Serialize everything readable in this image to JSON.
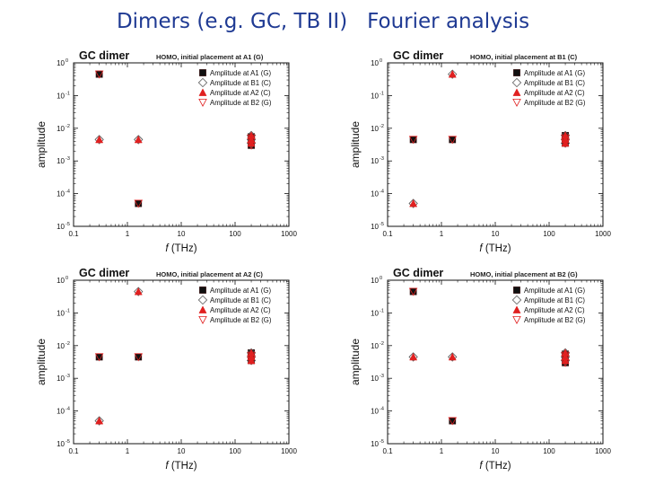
{
  "slide": {
    "title": "Dimers (e.g. GC, TB II)   Fourier analysis"
  },
  "chart_data": [
    {
      "type": "scatter",
      "title": "GC dimer",
      "subtitle": "HOMO, initial placement at A1 (G)",
      "xlabel": "f (THz)",
      "xlabel_italic": "f",
      "xlabel_rest": " (THz)",
      "ylabel": "amplitude",
      "x_scale": "log",
      "y_scale": "log",
      "xlim": [
        0.1,
        1000
      ],
      "ylim": [
        1e-05,
        1
      ],
      "x_ticks": [
        "0.1",
        "1",
        "10",
        "100",
        "1000"
      ],
      "y_ticks": [
        {
          "base": "10",
          "exp": "0",
          "value": 1
        },
        {
          "base": "10",
          "exp": "-1",
          "value": 0.1
        },
        {
          "base": "10",
          "exp": "-2",
          "value": 0.01
        },
        {
          "base": "10",
          "exp": "-3",
          "value": 0.001
        },
        {
          "base": "10",
          "exp": "-4",
          "value": 0.0001
        },
        {
          "base": "10",
          "exp": "-5",
          "value": 1e-05
        }
      ],
      "grid": false,
      "legend_position": "top-right",
      "series": [
        {
          "name": "Amplitude at A1 (G)",
          "marker": "filled-square",
          "color": "#111111",
          "x": [
            0.3,
            1.6,
            200,
            200,
            200
          ],
          "y": [
            0.45,
            5e-05,
            0.0055,
            0.004,
            0.003
          ]
        },
        {
          "name": "Amplitude at B1 (C)",
          "marker": "open-diamond",
          "color": "#555555",
          "x": [
            0.3,
            1.6,
            200,
            200,
            200
          ],
          "y": [
            0.0045,
            0.0045,
            0.006,
            0.0045,
            0.0035
          ]
        },
        {
          "name": "Amplitude at A2 (C)",
          "marker": "filled-triangle",
          "color": "#e02020",
          "x": [
            0.3,
            1.6,
            200,
            200,
            200
          ],
          "y": [
            0.0045,
            0.0045,
            0.006,
            0.0045,
            0.0035
          ]
        },
        {
          "name": "Amplitude at B2 (G)",
          "marker": "open-triangle-down",
          "color": "#e02020",
          "x": [
            0.3,
            1.6,
            200,
            200,
            200
          ],
          "y": [
            0.45,
            5e-05,
            0.005,
            0.004,
            0.003
          ]
        }
      ]
    },
    {
      "type": "scatter",
      "title": "GC dimer",
      "subtitle": "HOMO, initial placement at B1 (C)",
      "xlabel": "f (THz)",
      "xlabel_italic": "f",
      "xlabel_rest": " (THz)",
      "ylabel": "amplitude",
      "x_scale": "log",
      "y_scale": "log",
      "xlim": [
        0.1,
        1000
      ],
      "ylim": [
        1e-05,
        1
      ],
      "x_ticks": [
        "0.1",
        "1",
        "10",
        "100",
        "1000"
      ],
      "y_ticks": [
        {
          "base": "10",
          "exp": "0",
          "value": 1
        },
        {
          "base": "10",
          "exp": "-1",
          "value": 0.1
        },
        {
          "base": "10",
          "exp": "-2",
          "value": 0.01
        },
        {
          "base": "10",
          "exp": "-3",
          "value": 0.001
        },
        {
          "base": "10",
          "exp": "-4",
          "value": 0.0001
        },
        {
          "base": "10",
          "exp": "-5",
          "value": 1e-05
        }
      ],
      "grid": false,
      "legend_position": "top-right",
      "series": [
        {
          "name": "Amplitude at A1 (G)",
          "marker": "filled-square",
          "color": "#111111",
          "x": [
            0.3,
            1.6,
            200,
            200,
            200
          ],
          "y": [
            0.0045,
            0.0045,
            0.006,
            0.0045,
            0.0035
          ]
        },
        {
          "name": "Amplitude at B1 (C)",
          "marker": "open-diamond",
          "color": "#555555",
          "x": [
            0.3,
            1.6,
            200,
            200,
            200
          ],
          "y": [
            5e-05,
            0.45,
            0.006,
            0.0045,
            0.0035
          ]
        },
        {
          "name": "Amplitude at A2 (C)",
          "marker": "filled-triangle",
          "color": "#e02020",
          "x": [
            0.3,
            1.6,
            200,
            200,
            200
          ],
          "y": [
            5e-05,
            0.45,
            0.006,
            0.0045,
            0.0035
          ]
        },
        {
          "name": "Amplitude at B2 (G)",
          "marker": "open-triangle-down",
          "color": "#e02020",
          "x": [
            0.3,
            1.6,
            200,
            200,
            200
          ],
          "y": [
            0.0045,
            0.0045,
            0.005,
            0.004,
            0.0035
          ]
        }
      ]
    },
    {
      "type": "scatter",
      "title": "GC dimer",
      "subtitle": "HOMO, initial placement at A2 (C)",
      "xlabel": "f (THz)",
      "xlabel_italic": "f",
      "xlabel_rest": " (THz)",
      "ylabel": "amplitude",
      "x_scale": "log",
      "y_scale": "log",
      "xlim": [
        0.1,
        1000
      ],
      "ylim": [
        1e-05,
        1
      ],
      "x_ticks": [
        "0.1",
        "1",
        "10",
        "100",
        "1000"
      ],
      "y_ticks": [
        {
          "base": "10",
          "exp": "0",
          "value": 1
        },
        {
          "base": "10",
          "exp": "-1",
          "value": 0.1
        },
        {
          "base": "10",
          "exp": "-2",
          "value": 0.01
        },
        {
          "base": "10",
          "exp": "-3",
          "value": 0.001
        },
        {
          "base": "10",
          "exp": "-4",
          "value": 0.0001
        },
        {
          "base": "10",
          "exp": "-5",
          "value": 1e-05
        }
      ],
      "grid": false,
      "legend_position": "top-right",
      "series": [
        {
          "name": "Amplitude at A1 (G)",
          "marker": "filled-square",
          "color": "#111111",
          "x": [
            0.3,
            1.6,
            200,
            200,
            200
          ],
          "y": [
            0.0045,
            0.0045,
            0.006,
            0.0045,
            0.0035
          ]
        },
        {
          "name": "Amplitude at B1 (C)",
          "marker": "open-diamond",
          "color": "#555555",
          "x": [
            0.3,
            1.6,
            200,
            200,
            200
          ],
          "y": [
            5e-05,
            0.45,
            0.006,
            0.0045,
            0.0035
          ]
        },
        {
          "name": "Amplitude at A2 (C)",
          "marker": "filled-triangle",
          "color": "#e02020",
          "x": [
            0.3,
            1.6,
            200,
            200,
            200
          ],
          "y": [
            5e-05,
            0.45,
            0.006,
            0.0045,
            0.0035
          ]
        },
        {
          "name": "Amplitude at B2 (G)",
          "marker": "open-triangle-down",
          "color": "#e02020",
          "x": [
            0.3,
            1.6,
            200,
            200,
            200
          ],
          "y": [
            0.0045,
            0.0045,
            0.005,
            0.004,
            0.0035
          ]
        }
      ]
    },
    {
      "type": "scatter",
      "title": "GC dimer",
      "subtitle": "HOMO, initial placement at B2 (G)",
      "xlabel": "f (THz)",
      "xlabel_italic": "f",
      "xlabel_rest": " (THz)",
      "ylabel": "amplitude",
      "x_scale": "log",
      "y_scale": "log",
      "xlim": [
        0.1,
        1000
      ],
      "ylim": [
        1e-05,
        1
      ],
      "x_ticks": [
        "0.1",
        "1",
        "10",
        "100",
        "1000"
      ],
      "y_ticks": [
        {
          "base": "10",
          "exp": "0",
          "value": 1
        },
        {
          "base": "10",
          "exp": "-1",
          "value": 0.1
        },
        {
          "base": "10",
          "exp": "-2",
          "value": 0.01
        },
        {
          "base": "10",
          "exp": "-3",
          "value": 0.001
        },
        {
          "base": "10",
          "exp": "-4",
          "value": 0.0001
        },
        {
          "base": "10",
          "exp": "-5",
          "value": 1e-05
        }
      ],
      "grid": false,
      "legend_position": "top-right",
      "series": [
        {
          "name": "Amplitude at A1 (G)",
          "marker": "filled-square",
          "color": "#111111",
          "x": [
            0.3,
            1.6,
            200,
            200,
            200
          ],
          "y": [
            0.45,
            5e-05,
            0.0055,
            0.004,
            0.003
          ]
        },
        {
          "name": "Amplitude at B1 (C)",
          "marker": "open-diamond",
          "color": "#555555",
          "x": [
            0.3,
            1.6,
            200,
            200,
            200
          ],
          "y": [
            0.0045,
            0.0045,
            0.006,
            0.0045,
            0.0035
          ]
        },
        {
          "name": "Amplitude at A2 (C)",
          "marker": "filled-triangle",
          "color": "#e02020",
          "x": [
            0.3,
            1.6,
            200,
            200,
            200
          ],
          "y": [
            0.0045,
            0.0045,
            0.006,
            0.0045,
            0.0035
          ]
        },
        {
          "name": "Amplitude at B2 (G)",
          "marker": "open-triangle-down",
          "color": "#e02020",
          "x": [
            0.3,
            1.6,
            200,
            200,
            200
          ],
          "y": [
            0.45,
            5e-05,
            0.005,
            0.004,
            0.003
          ]
        }
      ]
    }
  ]
}
